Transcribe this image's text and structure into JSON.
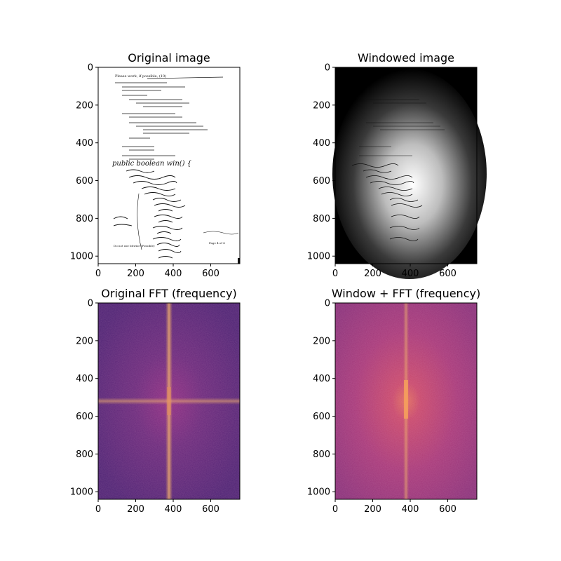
{
  "figure": {
    "panels": [
      {
        "id": "original",
        "title": "Original image",
        "kind": "document-scan",
        "x_ticks": [
          "0",
          "200",
          "400",
          "600"
        ],
        "y_ticks": [
          "0",
          "200",
          "400",
          "600",
          "800",
          "1000"
        ],
        "annotations": {
          "header": "Please work, if possible, (10)",
          "footer_left": "Do not use bitwise (Possible)",
          "footer_right": "Page 4 of 4",
          "handwriting": "public boolean win() {"
        }
      },
      {
        "id": "windowed",
        "title": "Windowed image",
        "kind": "windowed-scan",
        "x_ticks": [
          "0",
          "200",
          "400",
          "600"
        ],
        "y_ticks": [
          "0",
          "200",
          "400",
          "600",
          "800",
          "1000"
        ]
      },
      {
        "id": "fft",
        "title": "Original FFT (frequency)",
        "kind": "spectrum",
        "x_ticks": [
          "0",
          "200",
          "400",
          "600"
        ],
        "y_ticks": [
          "0",
          "200",
          "400",
          "600",
          "800",
          "1000"
        ]
      },
      {
        "id": "wfft",
        "title": "Window + FFT (frequency)",
        "kind": "spectrum",
        "x_ticks": [
          "0",
          "200",
          "400",
          "600"
        ],
        "y_ticks": [
          "0",
          "200",
          "400",
          "600",
          "800",
          "1000"
        ]
      }
    ]
  },
  "chart_data": [
    {
      "type": "heatmap",
      "title": "Original image",
      "xlabel": "",
      "ylabel": "",
      "xlim": [
        0,
        755
      ],
      "ylim": [
        1040,
        0
      ],
      "x_ticks": [
        0,
        200,
        400,
        600
      ],
      "y_ticks": [
        0,
        200,
        400,
        600,
        800,
        1000
      ],
      "colormap": "gray"
    },
    {
      "type": "heatmap",
      "title": "Windowed image",
      "xlabel": "",
      "ylabel": "",
      "xlim": [
        0,
        755
      ],
      "ylim": [
        1040,
        0
      ],
      "x_ticks": [
        0,
        200,
        400,
        600
      ],
      "y_ticks": [
        0,
        200,
        400,
        600,
        800,
        1000
      ],
      "colormap": "gray",
      "window_center": [
        370,
        520
      ]
    },
    {
      "type": "heatmap",
      "title": "Original FFT (frequency)",
      "xlabel": "",
      "ylabel": "",
      "xlim": [
        0,
        755
      ],
      "ylim": [
        1040,
        0
      ],
      "x_ticks": [
        0,
        200,
        400,
        600
      ],
      "y_ticks": [
        0,
        200,
        400,
        600,
        800,
        1000
      ],
      "colormap": "magma",
      "dc_center": [
        377,
        520
      ]
    },
    {
      "type": "heatmap",
      "title": "Window + FFT (frequency)",
      "xlabel": "",
      "ylabel": "",
      "xlim": [
        0,
        755
      ],
      "ylim": [
        1040,
        0
      ],
      "x_ticks": [
        0,
        200,
        400,
        600
      ],
      "y_ticks": [
        0,
        200,
        400,
        600,
        800,
        1000
      ],
      "colormap": "magma",
      "dc_center": [
        377,
        520
      ]
    }
  ]
}
